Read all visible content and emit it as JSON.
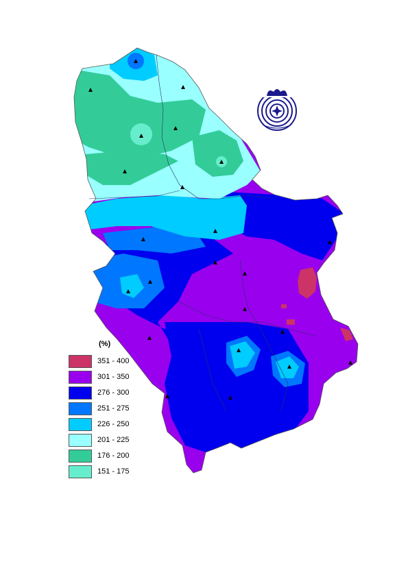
{
  "legend": {
    "title": "(%)",
    "classes": [
      {
        "label": "351 - 400",
        "color": "#cc3366"
      },
      {
        "label": "301 - 350",
        "color": "#9900ee"
      },
      {
        "label": "276 - 300",
        "color": "#0000ee"
      },
      {
        "label": "251 - 275",
        "color": "#0077ff"
      },
      {
        "label": "226 - 250",
        "color": "#00ccff"
      },
      {
        "label": "201 - 225",
        "color": "#99ffff"
      },
      {
        "label": "176 - 200",
        "color": "#33cc99"
      },
      {
        "label": "151 - 175",
        "color": "#66eecc"
      }
    ]
  },
  "emblem": {
    "icon": "hydrometeorological-service-logo-icon",
    "color": "#1a1a8c"
  },
  "stations": {
    "icon": "station-triangle-icon",
    "count": 22
  }
}
